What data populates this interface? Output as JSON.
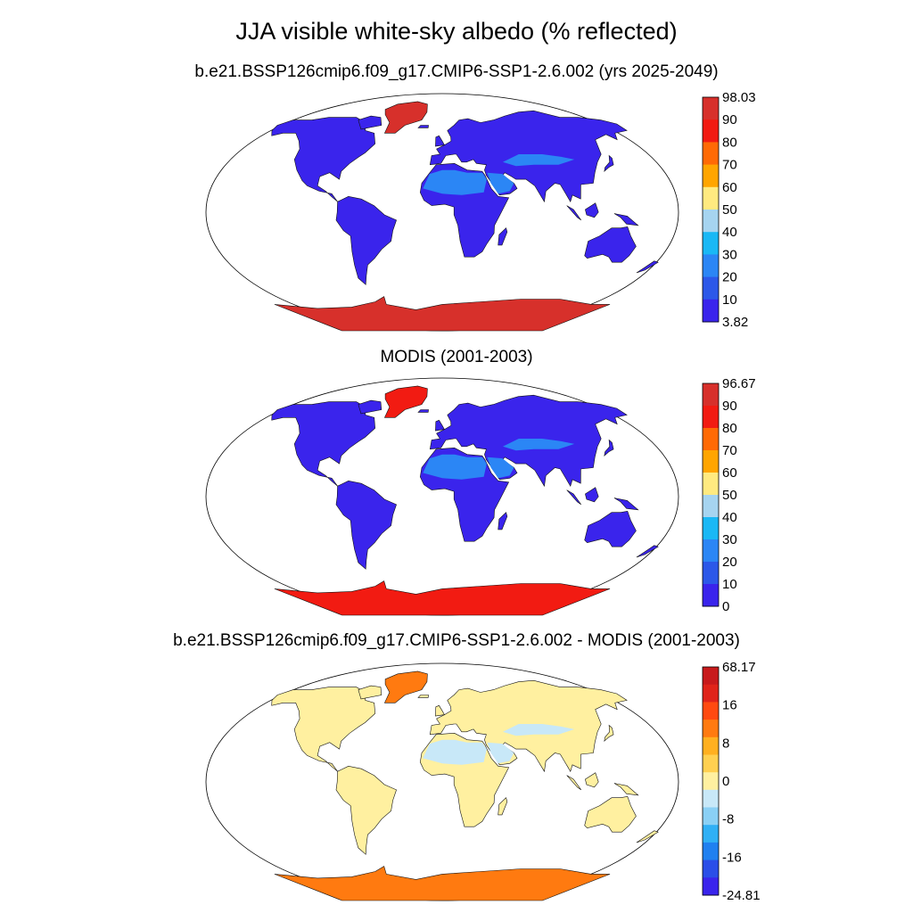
{
  "title": "JJA visible white-sky albedo (% reflected)",
  "panels": [
    {
      "id": "model",
      "subtitle": "b.e21.BSSP126cmip6.f09_g17.CMIP6-SSP1-2.6.002 (yrs 2025-2049)",
      "colorbar": {
        "labels": [
          "98.03",
          "90",
          "80",
          "70",
          "60",
          "50",
          "40",
          "30",
          "20",
          "10",
          "3.82"
        ],
        "colors": [
          "#d7302b",
          "#f21b12",
          "#ff6a05",
          "#ffa500",
          "#ffea80",
          "#a6d4f0",
          "#1ab8f5",
          "#2b86f5",
          "#2c58e9",
          "#3a24ec"
        ],
        "max": "98.03",
        "min": "3.82"
      },
      "land_color": "#3a24ec",
      "desert_color": "#2b86f5",
      "ice_color": "#d7302b"
    },
    {
      "id": "obs",
      "subtitle": "MODIS (2001-2003)",
      "colorbar": {
        "labels": [
          "96.67",
          "90",
          "80",
          "70",
          "60",
          "50",
          "40",
          "30",
          "20",
          "10",
          "0"
        ],
        "colors": [
          "#d7302b",
          "#f21b12",
          "#ff6a05",
          "#ffa500",
          "#ffea80",
          "#a6d4f0",
          "#1ab8f5",
          "#2b86f5",
          "#2c58e9",
          "#3a24ec"
        ],
        "max": "96.67",
        "min": "0"
      },
      "land_color": "#3a24ec",
      "desert_color": "#2b86f5",
      "ice_color": "#f21b12"
    },
    {
      "id": "diff",
      "subtitle": "b.e21.BSSP126cmip6.f09_g17.CMIP6-SSP1-2.6.002 - MODIS (2001-2003)",
      "colorbar": {
        "labels": [
          "68.17",
          "",
          "16",
          "",
          "8",
          "",
          "0",
          "",
          "-8",
          "",
          "-16",
          "",
          "-24.81"
        ],
        "colors": [
          "#c81a1c",
          "#e0241a",
          "#ff4a10",
          "#ff7a10",
          "#ffb020",
          "#ffd050",
          "#fff0a0",
          "#c8e8f8",
          "#8ad0f5",
          "#30b0f5",
          "#2080f0",
          "#2a4ee8",
          "#3a24ec"
        ],
        "max": "68.17",
        "min": "-24.81"
      },
      "land_color": "#fff0a0",
      "desert_color": "#c8e8f8",
      "ice_color": "#ff7a10"
    }
  ]
}
